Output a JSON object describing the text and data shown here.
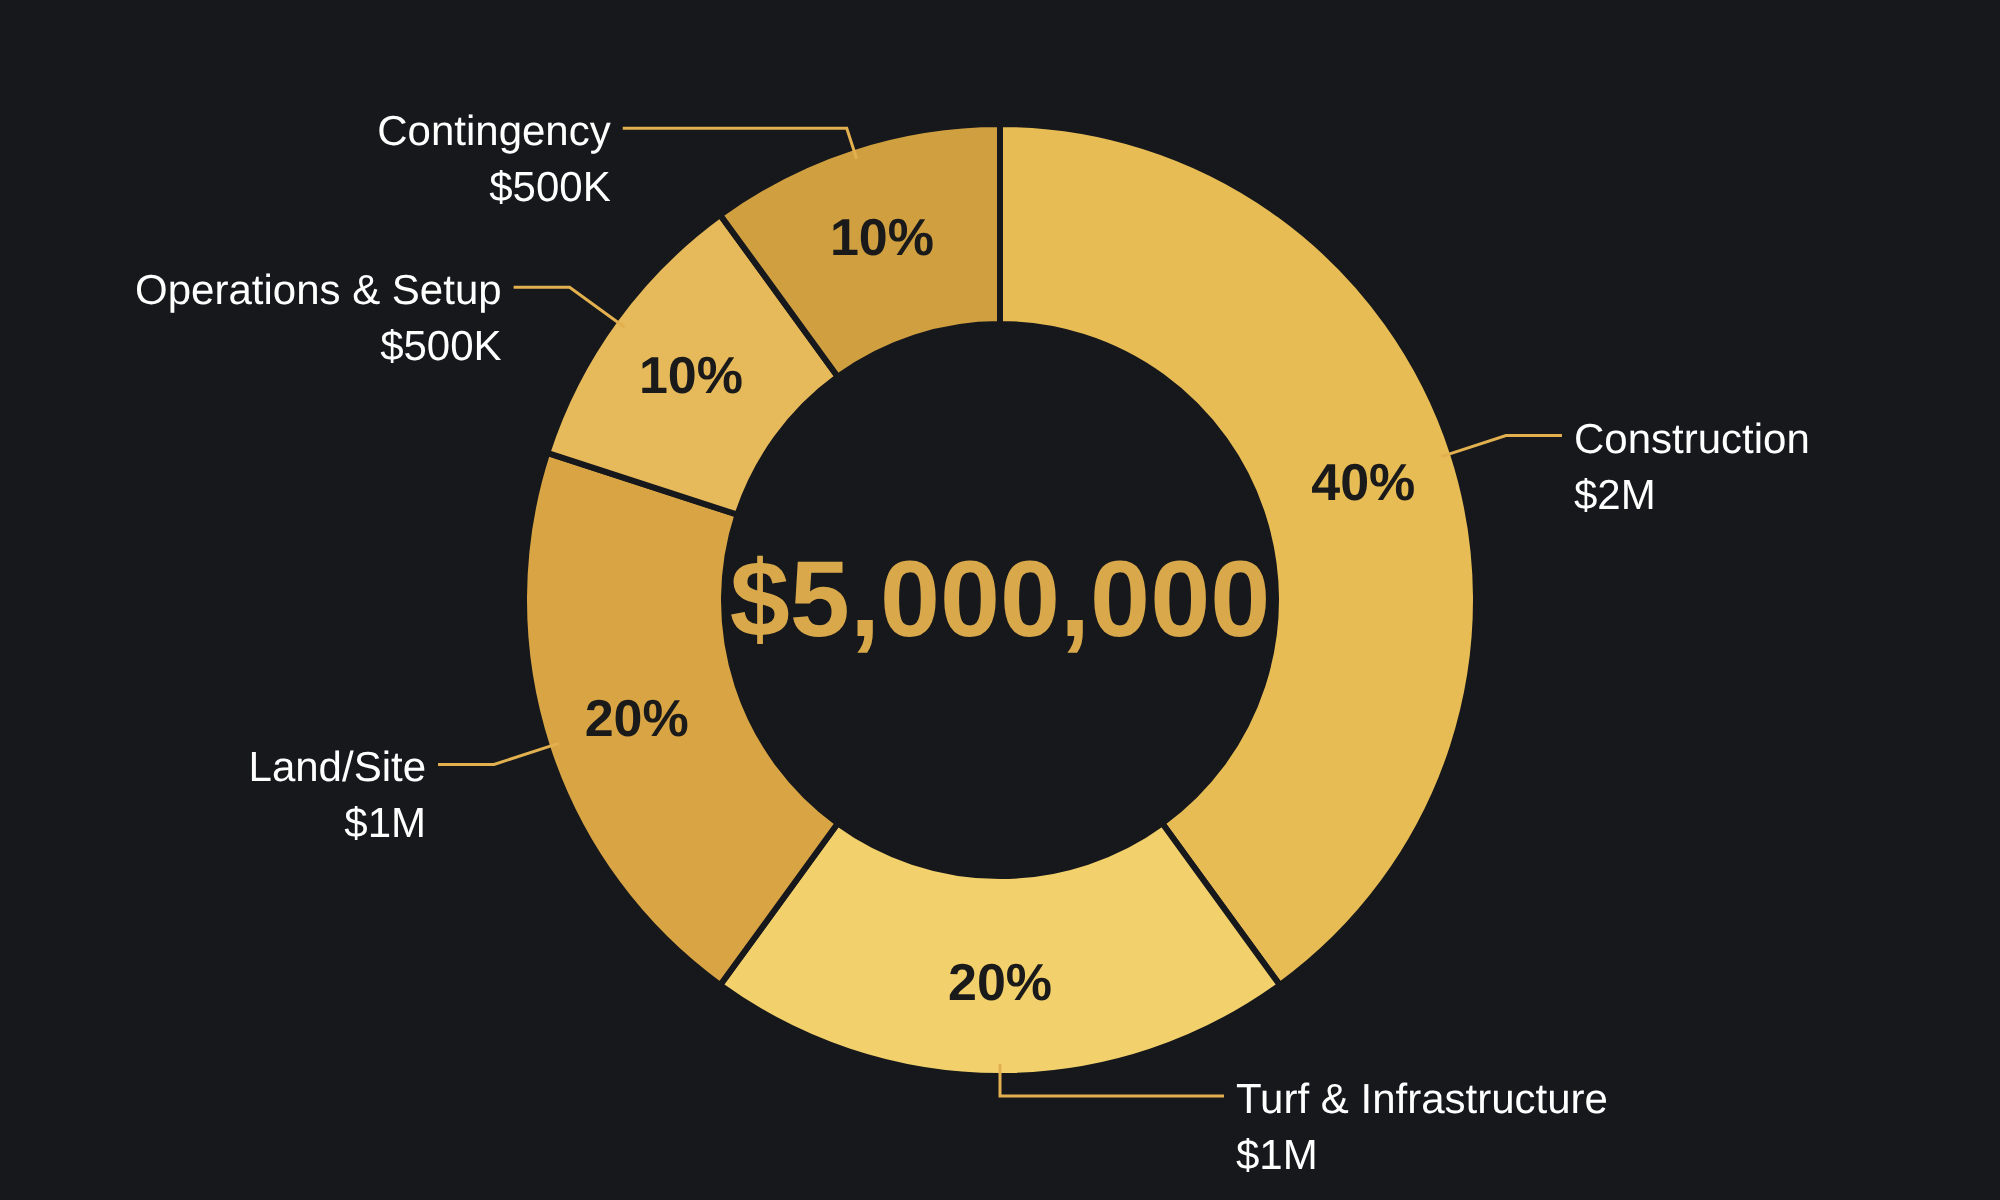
{
  "chart_data": {
    "type": "donut",
    "title": "$5,000,000",
    "categories": [
      "Construction\n$2M",
      "Turf & Infrastructure\n$1M",
      "Land/Site\n$1M",
      "Operations & Setup\n$500K",
      "Contingency\n$500K"
    ],
    "values": [
      40,
      20,
      20,
      10,
      10
    ],
    "value_labels": [
      "40%",
      "20%",
      "20%",
      "10%",
      "10%"
    ],
    "colors": [
      "#e8bc55",
      "#f2d06c",
      "#d9a544",
      "#e6b95a",
      "#cf9f40"
    ],
    "legend": false
  }
}
